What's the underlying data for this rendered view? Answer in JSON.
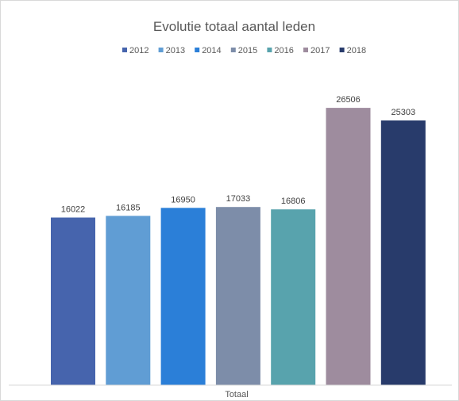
{
  "chart_data": {
    "type": "bar",
    "title": "Evolutie totaal aantal leden",
    "categories": [
      "Totaal"
    ],
    "xlabel": "",
    "ylabel": "",
    "ylim": [
      0,
      30000
    ],
    "grid": false,
    "legend_position": "top",
    "series": [
      {
        "name": "2012",
        "values": [
          16022
        ],
        "color": "#4664ad"
      },
      {
        "name": "2013",
        "values": [
          16185
        ],
        "color": "#609dd4"
      },
      {
        "name": "2014",
        "values": [
          16950
        ],
        "color": "#2b7fd8"
      },
      {
        "name": "2015",
        "values": [
          17033
        ],
        "color": "#7d8da9"
      },
      {
        "name": "2016",
        "values": [
          16806
        ],
        "color": "#58a3ad"
      },
      {
        "name": "2017",
        "values": [
          26506
        ],
        "color": "#9e8c9e"
      },
      {
        "name": "2018",
        "values": [
          25303
        ],
        "color": "#283b6b"
      }
    ]
  }
}
